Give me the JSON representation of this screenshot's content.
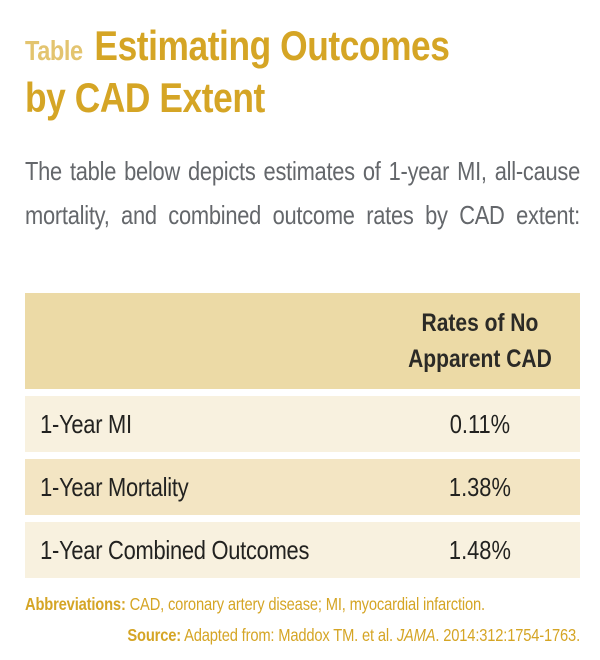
{
  "title": {
    "label": "Table",
    "heading_line1": "Estimating Outcomes",
    "heading_line2": "by CAD Extent"
  },
  "intro": "The table below depicts estimates of 1-year MI, all-cause mortality, and combined outcome rates by CAD extent:",
  "table": {
    "header_col2": "Rates of No Apparent CAD",
    "rows": [
      {
        "label": "1-Year MI",
        "value": "0.11%"
      },
      {
        "label": "1-Year Mortality",
        "value": "1.38%"
      },
      {
        "label": "1-Year Combined Outcomes",
        "value": "1.48%"
      }
    ]
  },
  "footer": {
    "abbreviations_label": "Abbreviations:",
    "abbreviations_text": " CAD, coronary artery disease; MI, myocardial infarction.",
    "source_label": "Source:",
    "source_prefix": " Adapted from: Maddox TM. et al. ",
    "source_journal": "JAMA",
    "source_suffix": ". 2014:312:1754-1763."
  },
  "colors": {
    "gold_dark": "#D5A525",
    "gold_light": "#E3C46F",
    "gray_text": "#64676B",
    "header_bg": "#ECDAA6",
    "row_light_bg": "#F8F1DF",
    "row_mid_bg": "#F3E5C3",
    "dark_text": "#2B2A26",
    "page_bg": "#FFFFFF"
  }
}
